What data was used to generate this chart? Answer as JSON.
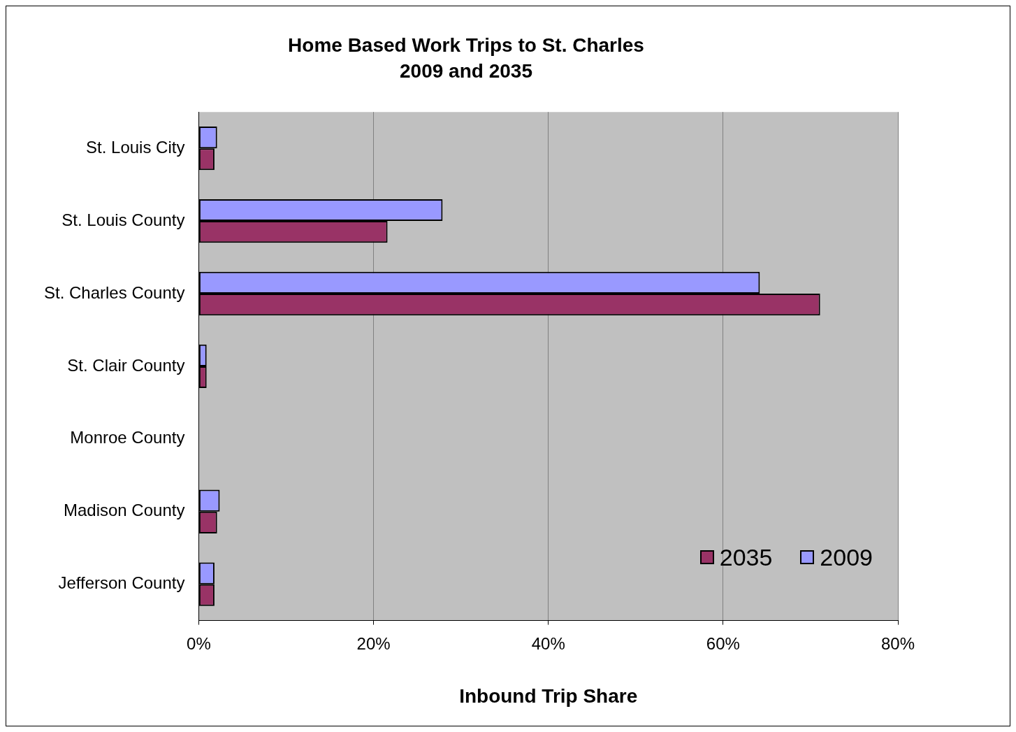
{
  "chart_data": {
    "type": "bar",
    "orientation": "horizontal",
    "title": "Home Based Work Trips to St. Charles",
    "subtitle": "2009 and 2035",
    "xlabel": "Inbound Trip Share",
    "categories": [
      "St. Louis City",
      "St. Louis County",
      "St. Charles County",
      "St. Clair County",
      "Monroe County",
      "Madison County",
      "Jefferson County"
    ],
    "series": [
      {
        "name": "2009",
        "color": "#9999ff",
        "values": [
          2.1,
          27.9,
          64.2,
          0.9,
          0,
          2.4,
          1.8
        ]
      },
      {
        "name": "2035",
        "color": "#993366",
        "values": [
          1.8,
          21.6,
          71.1,
          0.9,
          0,
          2.1,
          1.8
        ]
      }
    ],
    "xlim": [
      0,
      80
    ],
    "xticks": [
      {
        "value": 0,
        "label": "0%"
      },
      {
        "value": 20,
        "label": "20%"
      },
      {
        "value": 40,
        "label": "40%"
      },
      {
        "value": 60,
        "label": "60%"
      },
      {
        "value": 80,
        "label": "80%"
      }
    ],
    "grid": "x",
    "legend": "bottom right"
  }
}
